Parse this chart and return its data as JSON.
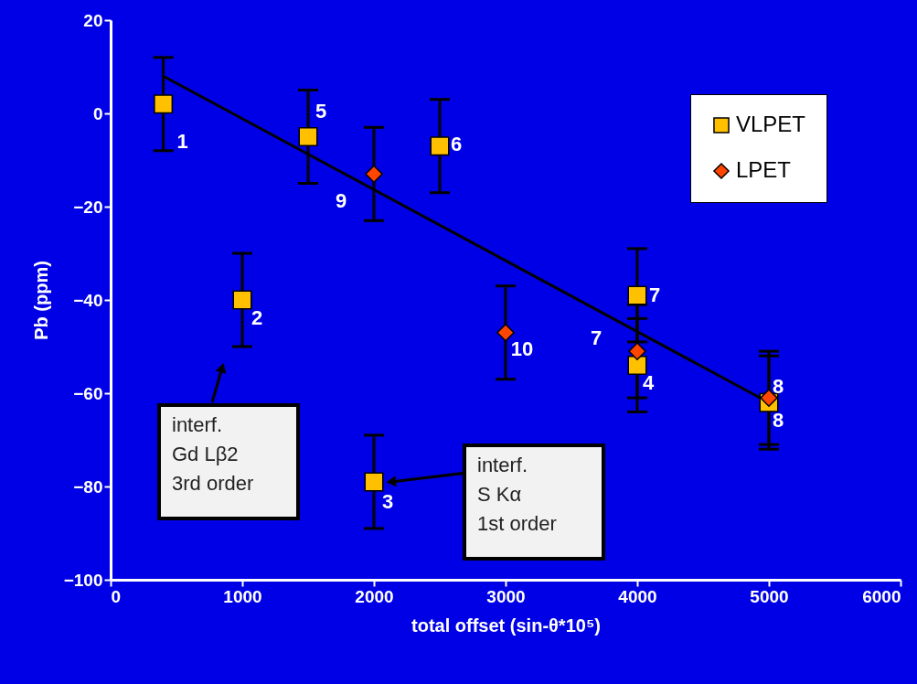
{
  "chart_data": {
    "type": "scatter",
    "xlabel": "total offset (sin-θ*10⁵)",
    "ylabel": "Pb (ppm)",
    "xlim": [
      0,
      6000
    ],
    "xticks": [
      0,
      1000,
      2000,
      3000,
      4000,
      5000,
      6000
    ],
    "ylim": [
      -100,
      20
    ],
    "yticks": [
      -100,
      -80,
      -60,
      -40,
      -20,
      0,
      20
    ],
    "grid": false,
    "legend": "top right",
    "series": [
      {
        "name": "VLPET",
        "color": "#ffc000",
        "marker": "square",
        "x": [
          400,
          1000,
          2000,
          4000,
          1500,
          2500,
          4000,
          5000
        ],
        "values": [
          2,
          -40,
          -79,
          -54,
          -5,
          -7,
          -39,
          -62
        ],
        "errors": [
          10,
          10,
          10,
          10,
          10,
          10,
          10,
          10
        ]
      },
      {
        "name": "LPET",
        "color": "#ff4500",
        "marker": "diamond",
        "x": [
          4000,
          5000,
          2000,
          3000
        ],
        "values": [
          -51,
          -61,
          -13,
          -47
        ],
        "errors": [
          10,
          10,
          10,
          10
        ]
      },
      {
        "type": "line",
        "color": "#000000",
        "line_style": "solid",
        "marker": "none",
        "x": [
          400,
          5000
        ],
        "values": [
          8,
          -62
        ]
      }
    ],
    "annotations": [
      {
        "text": "1",
        "x": 400,
        "y": 2
      },
      {
        "text": "2",
        "x": 1000,
        "y": -40
      },
      {
        "text": "3",
        "x": 2000,
        "y": -79
      },
      {
        "text": "4",
        "x": 4000,
        "y": -54
      },
      {
        "text": "5",
        "x": 1500,
        "y": -5
      },
      {
        "text": "6",
        "x": 2500,
        "y": -7
      },
      {
        "text": "7",
        "x": 4000,
        "y": -39
      },
      {
        "text": "8",
        "x": 5000,
        "y": -62
      },
      {
        "text": "7",
        "x": 4000,
        "y": -51
      },
      {
        "text": "8",
        "x": 5000,
        "y": -61
      },
      {
        "text": "9",
        "x": 2000,
        "y": -13
      },
      {
        "text": "10",
        "x": 3000,
        "y": -47
      },
      "interf.\nGd Lβ2\n3rd order",
      {
        "text": "interf.\nS Kα\n1st order",
        "x": 2130,
        "y": -79
      }
    ]
  }
}
